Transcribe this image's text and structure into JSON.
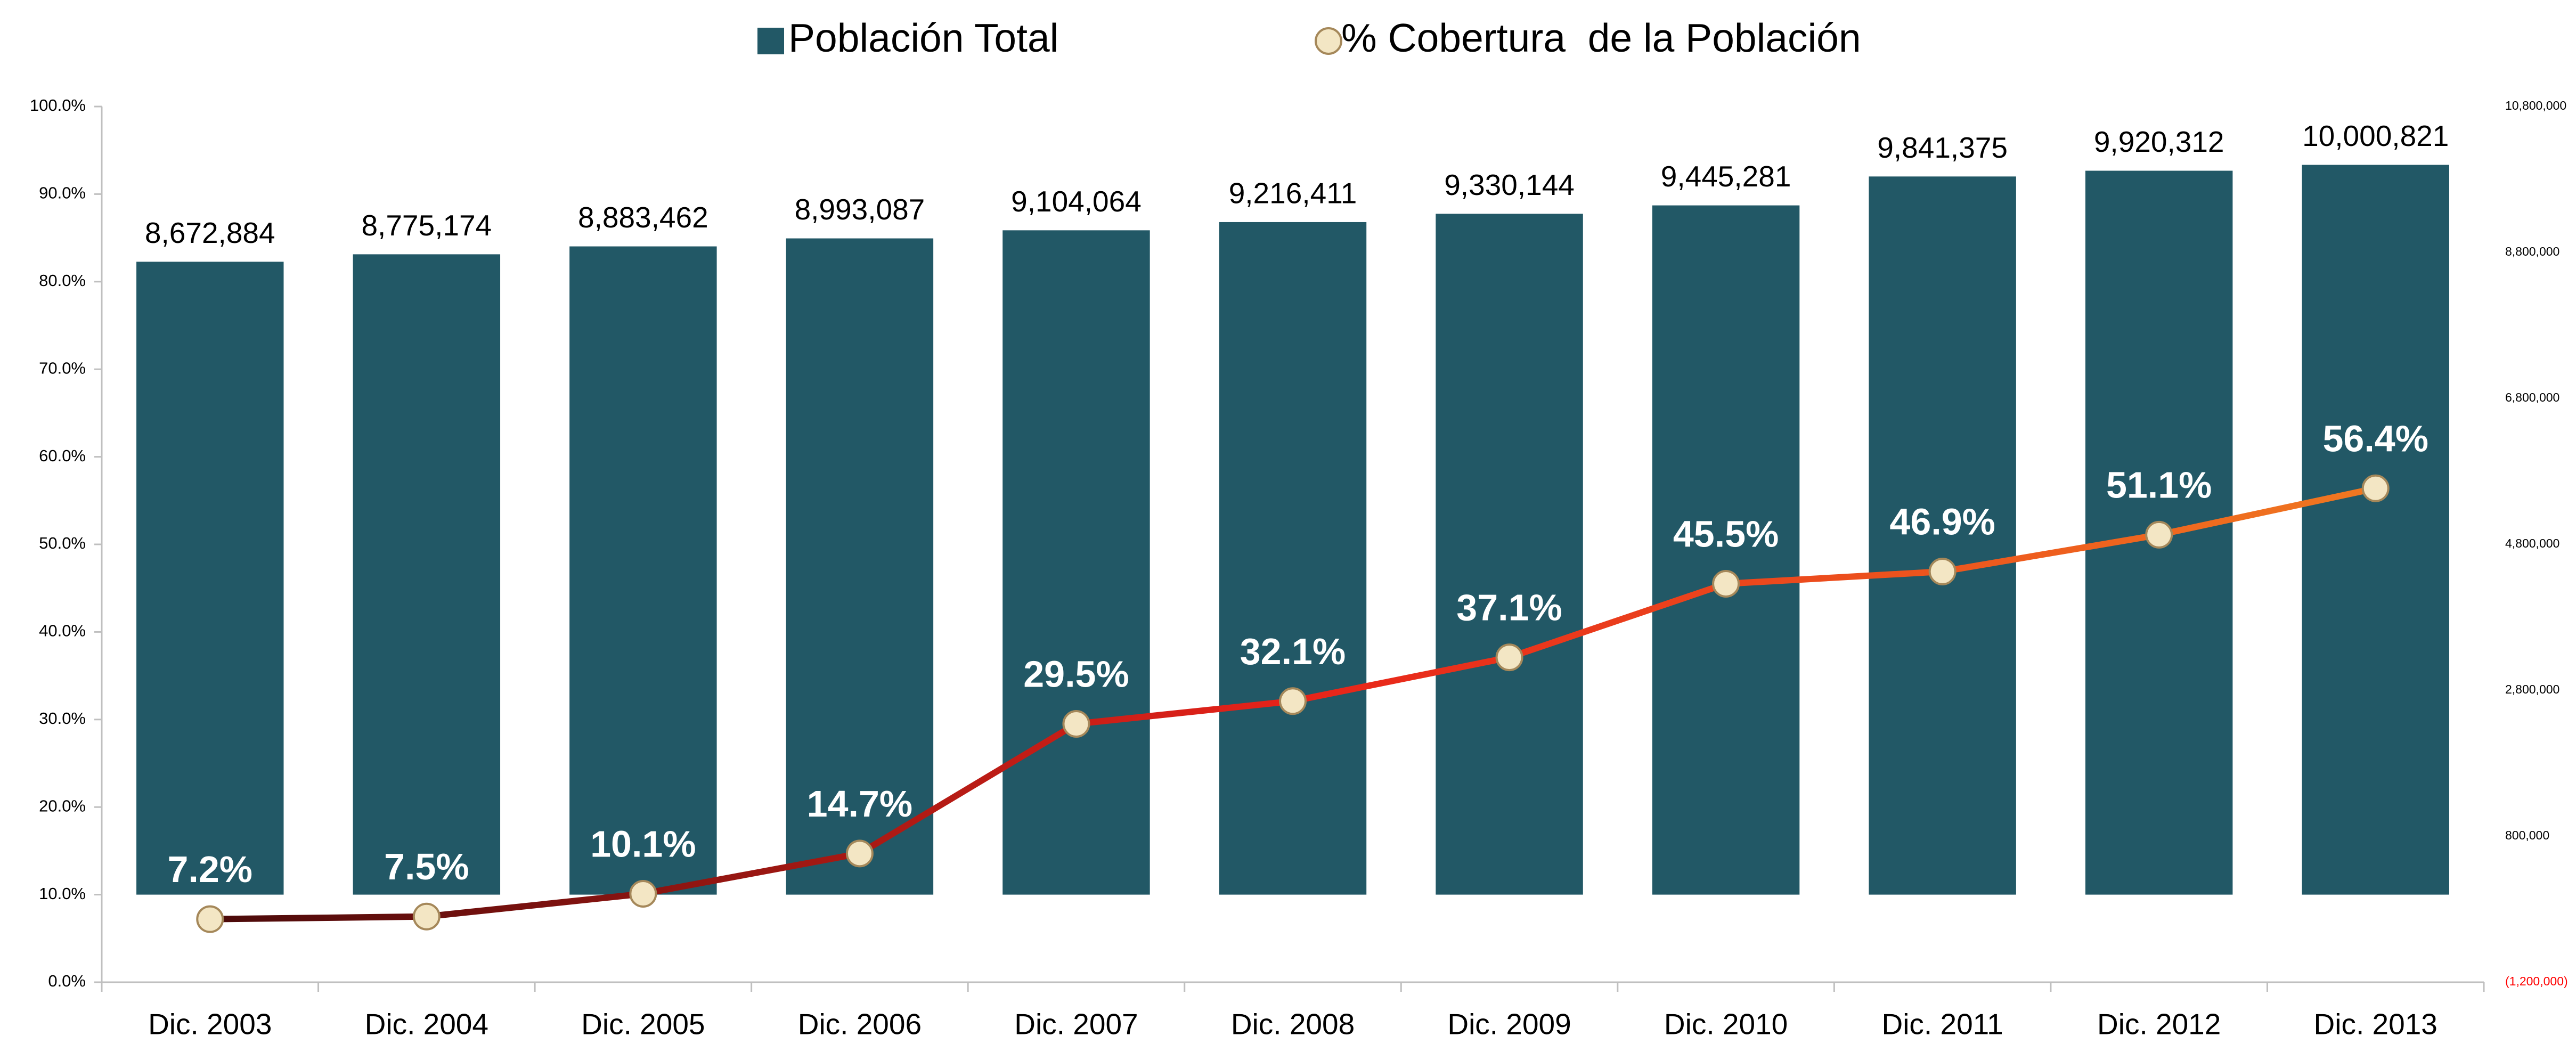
{
  "chart_data": {
    "type": "bar-line",
    "categories": [
      "Dic. 2003",
      "Dic. 2004",
      "Dic. 2005",
      "Dic. 2006",
      "Dic. 2007",
      "Dic. 2008",
      "Dic. 2009",
      "Dic. 2010",
      "Dic. 2011",
      "Dic. 2012",
      "Dic. 2013"
    ],
    "series": [
      {
        "name": "Población Total",
        "type": "bar",
        "axis": "y2",
        "color": "#225866",
        "values": [
          8672884,
          8775174,
          8883462,
          8993087,
          9104064,
          9216411,
          9330144,
          9445281,
          9841375,
          9920312,
          10000821
        ],
        "value_labels": [
          "8,672,884",
          "8,775,174",
          "8,883,462",
          "8,993,087",
          "9,104,064",
          "9,216,411",
          "9,330,144",
          "9,445,281",
          "9,841,375",
          "9,920,312",
          "10,000,821"
        ]
      },
      {
        "name": "% Cobertura  de la Población",
        "type": "line",
        "axis": "y",
        "color": "#e8231a",
        "gradient": [
          "#4a0a0a",
          "#e8231a",
          "#f07820"
        ],
        "marker_color": "#f3e6c4",
        "values": [
          7.2,
          7.5,
          10.1,
          14.7,
          29.5,
          32.1,
          37.1,
          45.5,
          46.9,
          51.1,
          56.4
        ],
        "value_labels": [
          "7.2%",
          "7.5%",
          "10.1%",
          "14.7%",
          "29.5%",
          "32.1%",
          "37.1%",
          "45.5%",
          "46.9%",
          "51.1%",
          "56.4%"
        ]
      }
    ],
    "ylim": [
      0,
      100
    ],
    "yticks": [
      {
        "value": 0,
        "label": "0.0%"
      },
      {
        "value": 10,
        "label": "10.0%"
      },
      {
        "value": 20,
        "label": "20.0%"
      },
      {
        "value": 30,
        "label": "30.0%"
      },
      {
        "value": 40,
        "label": "40.0%"
      },
      {
        "value": 50,
        "label": "50.0%"
      },
      {
        "value": 60,
        "label": "60.0%"
      },
      {
        "value": 70,
        "label": "70.0%"
      },
      {
        "value": 80,
        "label": "80.0%"
      },
      {
        "value": 90,
        "label": "90.0%"
      },
      {
        "value": 100,
        "label": "100.0%"
      }
    ],
    "y2lim": [
      -1200000,
      10800000
    ],
    "y2ticks": [
      {
        "value": -1200000,
        "label": "(1,200,000)"
      },
      {
        "value": 800000,
        "label": "800,000"
      },
      {
        "value": 2800000,
        "label": "2,800,000"
      },
      {
        "value": 4800000,
        "label": "4,800,000"
      },
      {
        "value": 6800000,
        "label": "6,800,000"
      },
      {
        "value": 8800000,
        "label": "8,800,000"
      },
      {
        "value": 10800000,
        "label": "10,800,000"
      }
    ],
    "legend": "top",
    "grid": false
  }
}
